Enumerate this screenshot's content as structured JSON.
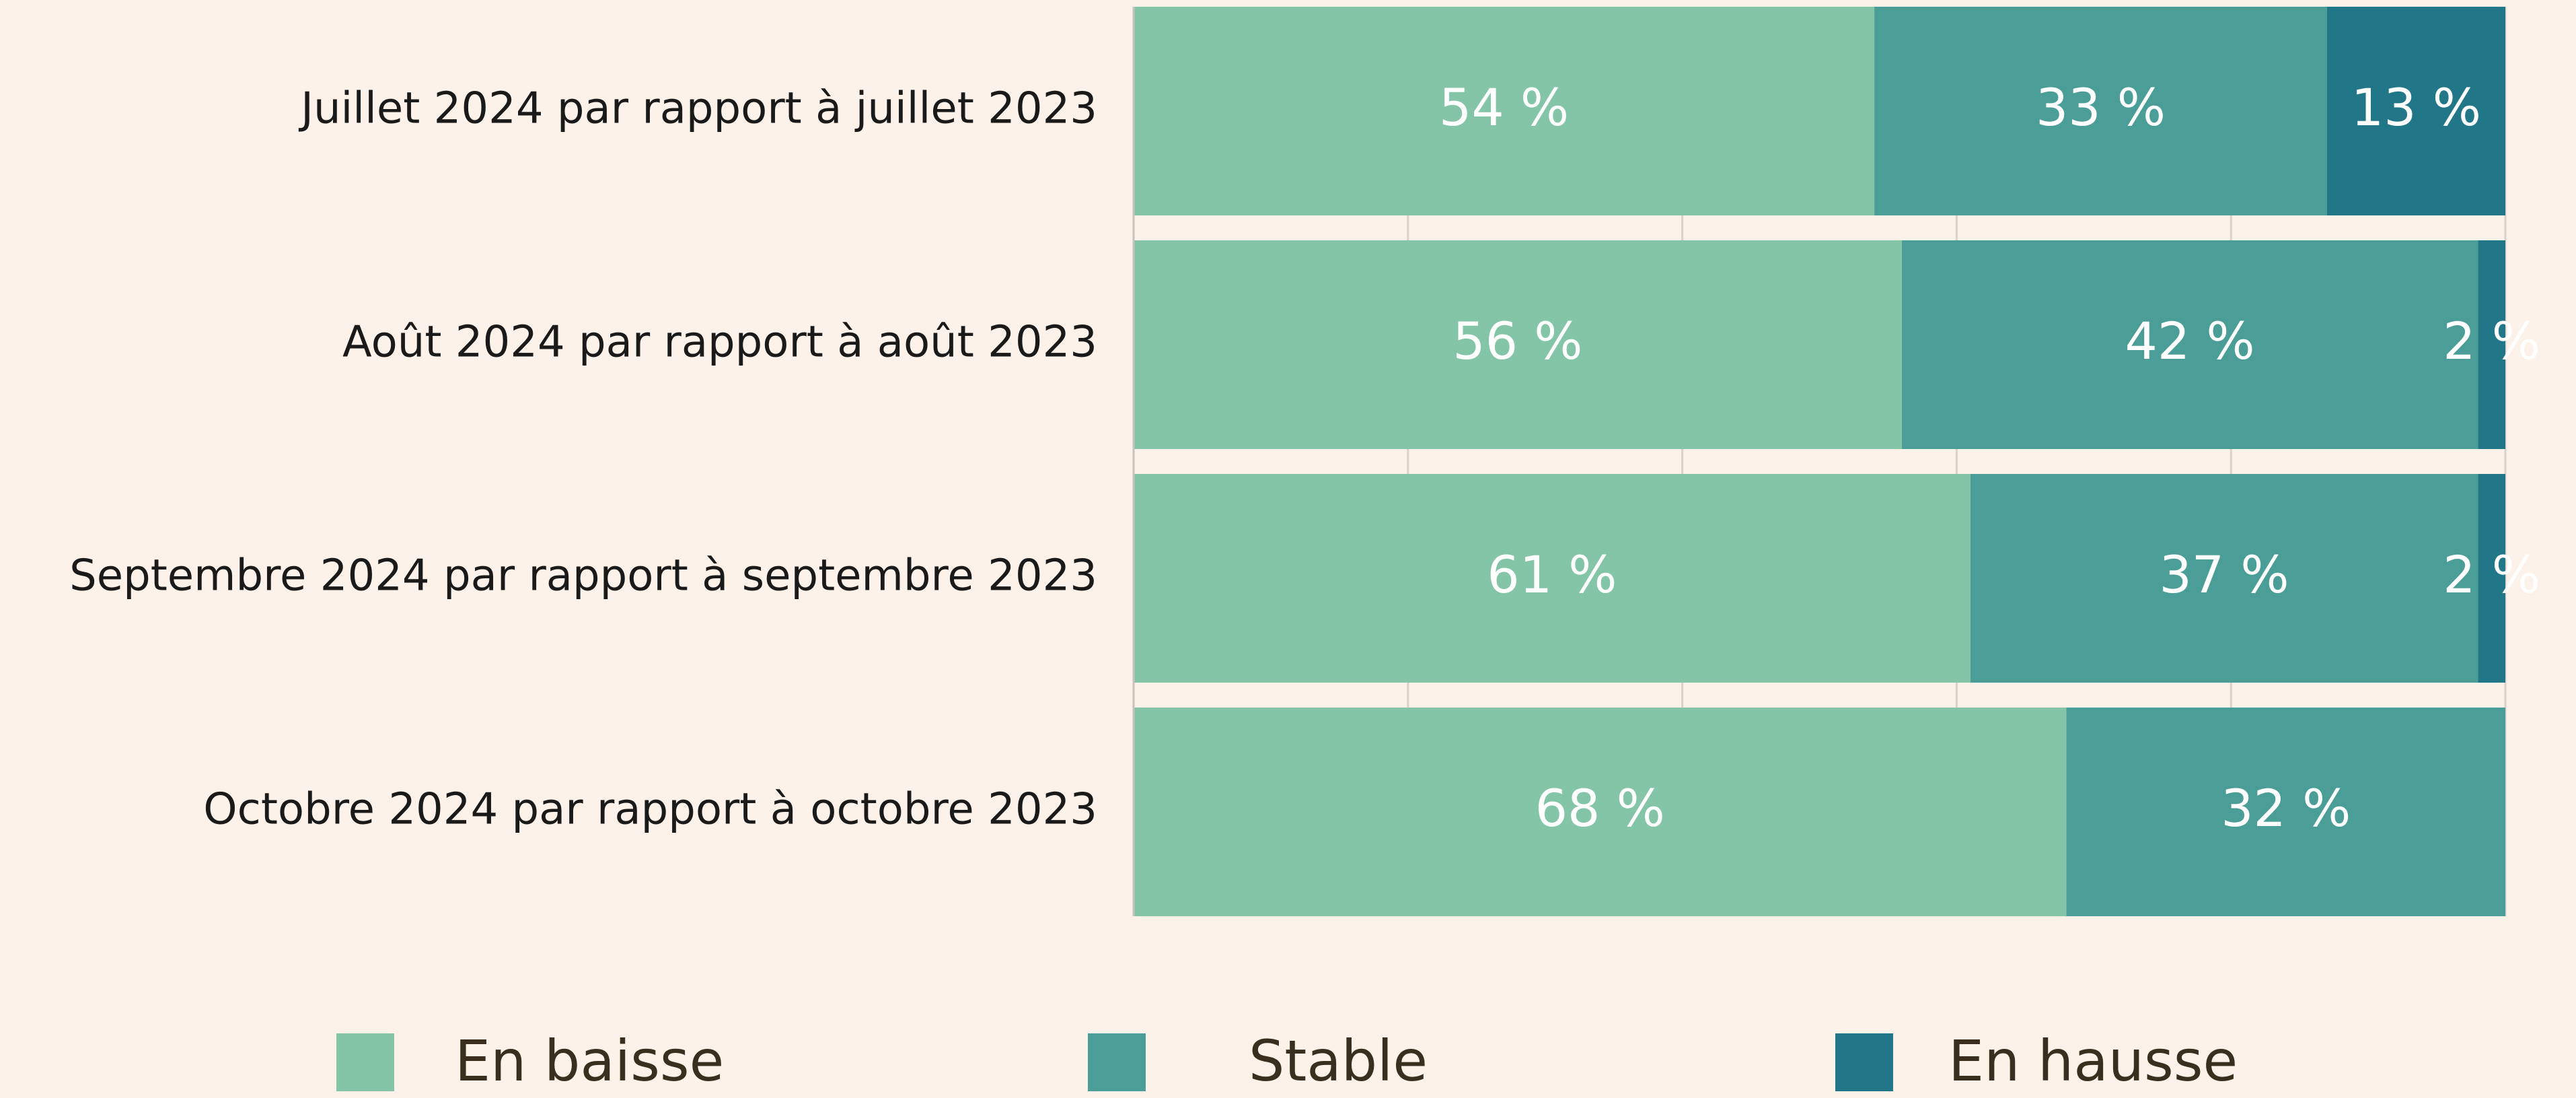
{
  "chart_data": {
    "type": "stacked_barh",
    "categories": [
      "Juillet 2024 par rapport à juillet 2023",
      "Août 2024 par rapport à août 2023",
      "Septembre 2024 par rapport à septembre 2023",
      "Octobre 2024 par rapport à octobre 2023"
    ],
    "series": [
      {
        "name": "En baisse",
        "color": "#84c5a8",
        "values": [
          54,
          56,
          61,
          68
        ],
        "value_labels": [
          "54 %",
          "56 %",
          "61 %",
          "68 %"
        ]
      },
      {
        "name": "Stable",
        "color": "#4b9e97",
        "values": [
          33,
          42,
          37,
          32
        ],
        "value_labels": [
          "33 %",
          "42 %",
          "37 %",
          "32 %"
        ]
      },
      {
        "name": "En hausse",
        "color": "#217787",
        "values": [
          13,
          2,
          2,
          null
        ],
        "value_labels": [
          "13 %",
          "2 %",
          "2 %",
          null
        ]
      }
    ],
    "xlim": [
      0,
      100
    ],
    "xticks": [
      0,
      20,
      40,
      60,
      80,
      100
    ],
    "grid": true,
    "legend": "bottom"
  }
}
